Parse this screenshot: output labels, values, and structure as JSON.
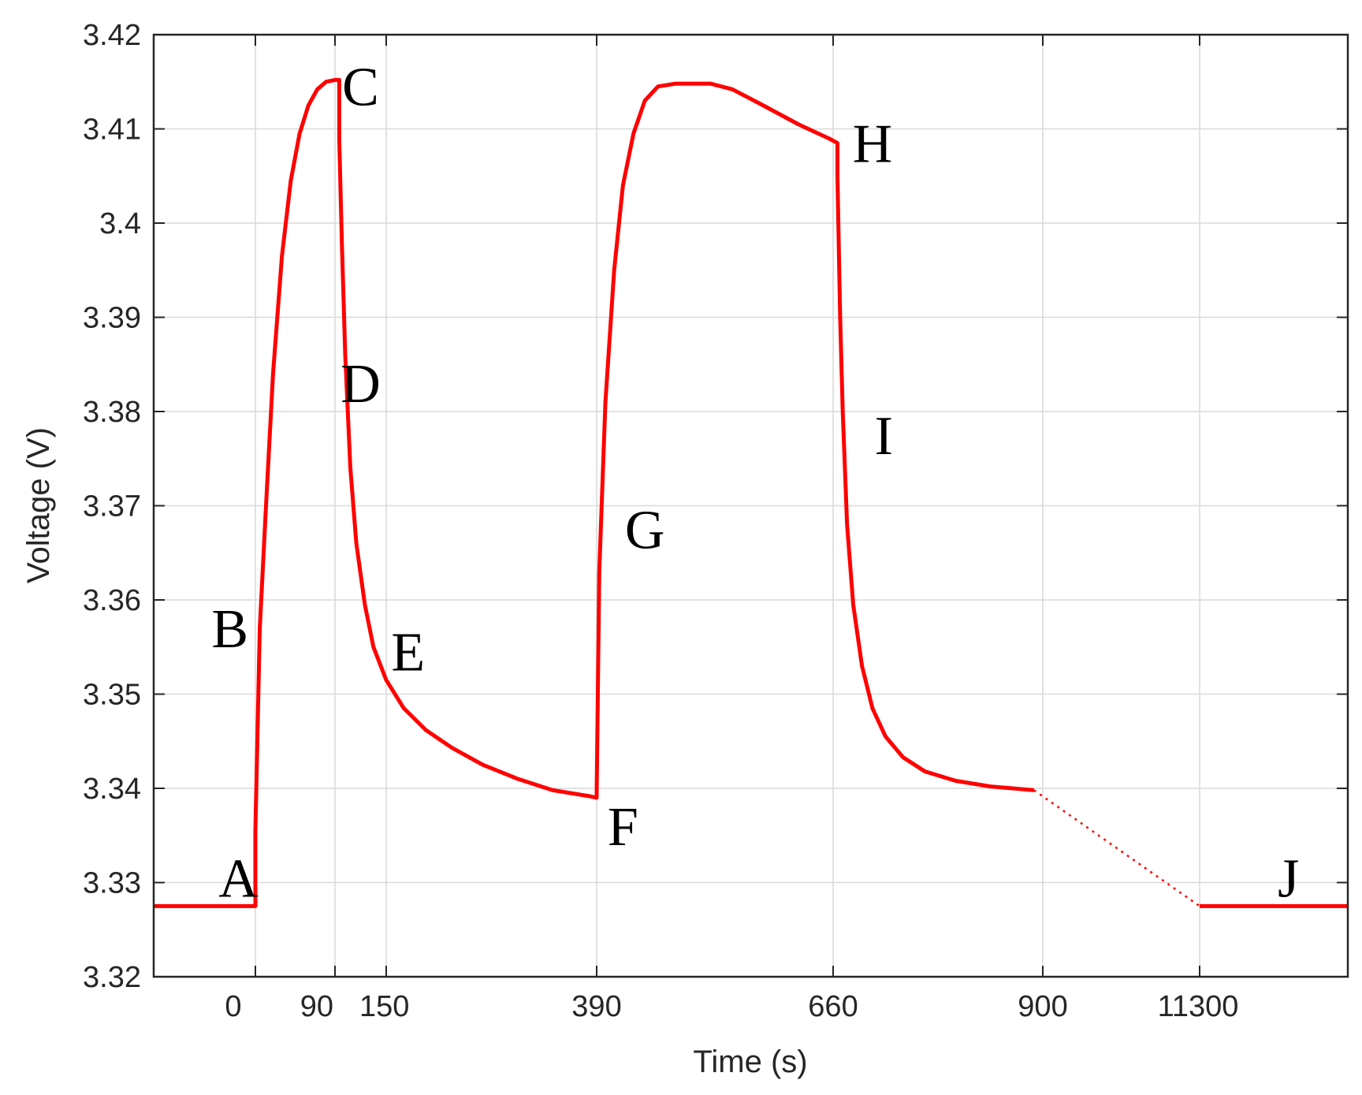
{
  "chart_data": {
    "type": "line",
    "title": "",
    "xlabel": "Time (s)",
    "ylabel": "Voltage (V)",
    "ylim": [
      3.32,
      3.42
    ],
    "yticks": [
      "3.32",
      "3.33",
      "3.34",
      "3.35",
      "3.36",
      "3.37",
      "3.38",
      "3.39",
      "3.4",
      "3.41",
      "3.42"
    ],
    "xticks": [
      "0",
      "90",
      "150",
      "390",
      "660",
      "900",
      "11300"
    ],
    "grid": true,
    "line_color": "#ff0000",
    "series": [
      {
        "style": "solid",
        "points": [
          [
            -120,
            3.3275
          ],
          [
            0,
            3.3275
          ],
          [
            0,
            3.3355
          ],
          [
            5,
            3.357
          ],
          [
            12,
            3.37
          ],
          [
            20,
            3.384
          ],
          [
            30,
            3.3965
          ],
          [
            40,
            3.4045
          ],
          [
            50,
            3.4095
          ],
          [
            60,
            3.4125
          ],
          [
            70,
            3.4142
          ],
          [
            80,
            3.415
          ],
          [
            90,
            3.4152
          ],
          [
            95,
            3.4152
          ],
          [
            95,
            3.409
          ],
          [
            98,
            3.398
          ],
          [
            102,
            3.386
          ],
          [
            108,
            3.374
          ],
          [
            115,
            3.366
          ],
          [
            125,
            3.3595
          ],
          [
            135,
            3.355
          ],
          [
            150,
            3.3515
          ],
          [
            170,
            3.3485
          ],
          [
            195,
            3.3462
          ],
          [
            225,
            3.3443
          ],
          [
            260,
            3.3425
          ],
          [
            300,
            3.341
          ],
          [
            340,
            3.3398
          ],
          [
            380,
            3.3392
          ],
          [
            390,
            3.339
          ],
          [
            390,
            3.3395
          ],
          [
            393,
            3.363
          ],
          [
            400,
            3.381
          ],
          [
            410,
            3.395
          ],
          [
            420,
            3.404
          ],
          [
            432,
            3.4095
          ],
          [
            445,
            3.413
          ],
          [
            460,
            3.4145
          ],
          [
            480,
            3.4148
          ],
          [
            520,
            3.4148
          ],
          [
            545,
            3.4142
          ],
          [
            580,
            3.4125
          ],
          [
            620,
            3.4105
          ],
          [
            655,
            3.409
          ],
          [
            665,
            3.4085
          ],
          [
            665,
            3.405
          ],
          [
            668,
            3.39
          ],
          [
            671,
            3.38
          ],
          [
            676,
            3.368
          ],
          [
            683,
            3.3595
          ],
          [
            693,
            3.353
          ],
          [
            705,
            3.3485
          ],
          [
            720,
            3.3455
          ],
          [
            740,
            3.3433
          ],
          [
            765,
            3.3418
          ],
          [
            800,
            3.3408
          ],
          [
            840,
            3.3402
          ],
          [
            890,
            3.3398
          ]
        ]
      },
      {
        "style": "dotted",
        "points": [
          [
            890,
            3.3398
          ],
          [
            11300,
            3.3275
          ]
        ]
      },
      {
        "style": "solid",
        "points": [
          [
            11300,
            3.3275
          ],
          [
            11600,
            3.3275
          ]
        ]
      }
    ],
    "annotations": [
      {
        "text": "A",
        "x": -20,
        "y": 3.3305
      },
      {
        "text": "B",
        "x": -30,
        "y": 3.357
      },
      {
        "text": "C",
        "x": 120,
        "y": 3.4145
      },
      {
        "text": "D",
        "x": 120,
        "y": 3.383
      },
      {
        "text": "E",
        "x": 175,
        "y": 3.3545
      },
      {
        "text": "F",
        "x": 420,
        "y": 3.336
      },
      {
        "text": "G",
        "x": 445,
        "y": 3.3675
      },
      {
        "text": "H",
        "x": 705,
        "y": 3.4085
      },
      {
        "text": "I",
        "x": 718,
        "y": 3.3775
      },
      {
        "text": "J",
        "x": 11480,
        "y": 3.3305
      }
    ]
  }
}
